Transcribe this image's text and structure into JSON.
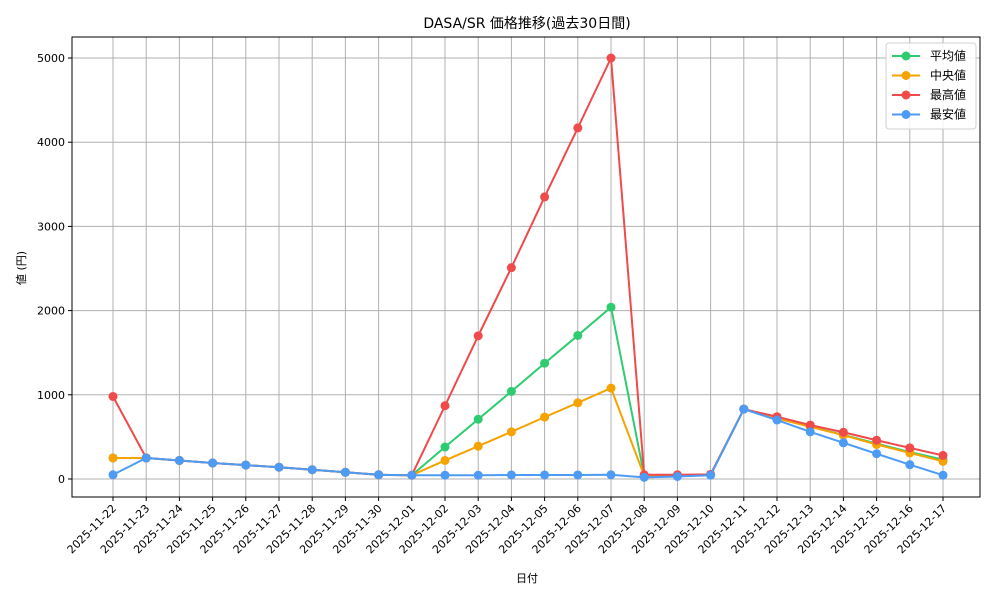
{
  "chart_data": {
    "type": "line",
    "title": "DASA/SR 価格推移(過去30日間)",
    "xlabel": "日付",
    "ylabel": "値 (円)",
    "ylim": [
      -230,
      5250
    ],
    "yticks": [
      0,
      1000,
      2000,
      3000,
      4000,
      5000
    ],
    "grid": true,
    "legend_position": "upper right",
    "categories": [
      "2025-11-22",
      "2025-11-23",
      "2025-11-24",
      "2025-11-25",
      "2025-11-26",
      "2025-11-27",
      "2025-11-28",
      "2025-11-29",
      "2025-11-30",
      "2025-12-01",
      "2025-12-02",
      "2025-12-03",
      "2025-12-04",
      "2025-12-05",
      "2025-12-06",
      "2025-12-07",
      "2025-12-08",
      "2025-12-09",
      "2025-12-10",
      "2025-12-11",
      "2025-12-12",
      "2025-12-13",
      "2025-12-14",
      "2025-12-15",
      "2025-12-16",
      "2025-12-17"
    ],
    "series": [
      {
        "name": "平均値",
        "color": "#2ecc71",
        "values": [
          250,
          250,
          220,
          190,
          165,
          140,
          110,
          80,
          50,
          45,
          380,
          710,
          1040,
          1375,
          1705,
          2040,
          40,
          45,
          50,
          830,
          725,
          620,
          525,
          420,
          320,
          230
        ]
      },
      {
        "name": "中央値",
        "color": "#f5a300",
        "values": [
          250,
          250,
          220,
          190,
          165,
          140,
          110,
          80,
          50,
          45,
          220,
          390,
          560,
          735,
          905,
          1080,
          40,
          45,
          50,
          830,
          720,
          620,
          520,
          410,
          310,
          210
        ]
      },
      {
        "name": "最高値",
        "color": "#f04a4a",
        "values": [
          980,
          250,
          220,
          190,
          165,
          140,
          110,
          80,
          50,
          45,
          870,
          1700,
          2510,
          3350,
          4170,
          5000,
          50,
          50,
          55,
          830,
          740,
          640,
          555,
          460,
          370,
          280
        ]
      },
      {
        "name": "最安値",
        "color": "#4e9bf5",
        "values": [
          50,
          250,
          220,
          190,
          165,
          140,
          110,
          80,
          50,
          45,
          45,
          45,
          48,
          48,
          48,
          50,
          20,
          30,
          45,
          830,
          700,
          560,
          430,
          300,
          170,
          45
        ]
      }
    ]
  }
}
